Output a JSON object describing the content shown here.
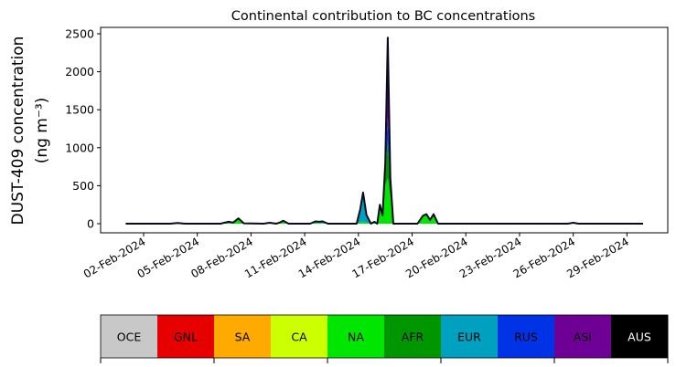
{
  "chart_data": {
    "type": "area",
    "stacked": true,
    "title": "Continental contribution to BC concentrations",
    "ylabel_line1": "DUST-409 concentration",
    "ylabel_line2": "(ng m⁻³)",
    "xlabel": "",
    "x_unit": "day of February 2024",
    "xlim": [
      -0.4,
      31.28
    ],
    "ylim": [
      -120,
      2584
    ],
    "grid": false,
    "yticks": [
      0,
      500,
      1000,
      1500,
      2000,
      2500
    ],
    "ytick_labels": [
      "0",
      "500",
      "1000",
      "1500",
      "2000",
      "2500"
    ],
    "xticks": [
      2,
      5,
      8,
      11,
      14,
      17,
      20,
      23,
      26,
      29
    ],
    "xtick_labels": [
      "02-Feb-2024",
      "05-Feb-2024",
      "08-Feb-2024",
      "11-Feb-2024",
      "14-Feb-2024",
      "17-Feb-2024",
      "20-Feb-2024",
      "23-Feb-2024",
      "26-Feb-2024",
      "29-Feb-2024"
    ],
    "x": [
      1,
      3.5,
      3.9,
      4.3,
      6.3,
      6.75,
      7.0,
      7.3,
      7.6,
      8.7,
      9.05,
      9.4,
      9.6,
      9.8,
      10.1,
      11.3,
      11.6,
      11.8,
      12.0,
      12.3,
      13.9,
      14.1,
      14.26,
      14.45,
      14.7,
      14.9,
      15.05,
      15.2,
      15.35,
      15.5,
      15.64,
      15.78,
      15.95,
      17.3,
      17.6,
      17.8,
      18.0,
      18.2,
      18.45,
      25.7,
      26.0,
      26.3,
      29.9
    ],
    "series": [
      {
        "name": "OCE",
        "color": "#c8c8c8",
        "values": {}
      },
      {
        "name": "GNL",
        "color": "#e60000",
        "values": {}
      },
      {
        "name": "SA",
        "color": "#ffaa00",
        "values": {}
      },
      {
        "name": "CA",
        "color": "#ccff00",
        "values": {}
      },
      {
        "name": "NA",
        "color": "#00e600",
        "values": {
          "3.9": 10,
          "6.75": 25,
          "7.0": 15,
          "7.3": 60,
          "7.6": 5,
          "9.05": 12,
          "9.6": 15,
          "9.8": 25,
          "11.6": 15,
          "11.8": 10,
          "12.0": 10,
          "14.1": 20,
          "14.26": 30,
          "14.45": 15,
          "14.9": 20,
          "15.2": 200,
          "15.35": 100,
          "15.5": 500,
          "15.64": 600,
          "15.78": 350,
          "17.6": 95,
          "17.8": 115,
          "18.0": 50,
          "18.2": 115,
          "26.0": 12
        }
      },
      {
        "name": "AFR",
        "color": "#009600",
        "values": {
          "7.3": 10,
          "15.2": 30,
          "15.35": 10,
          "15.5": 200,
          "15.64": 500,
          "15.78": 150,
          "17.6": 10,
          "17.8": 10,
          "18.2": 10
        }
      },
      {
        "name": "EUR",
        "color": "#00a0c0",
        "values": {
          "9.8": 15,
          "11.6": 15,
          "11.8": 15,
          "12.0": 20,
          "14.1": 170,
          "14.26": 380,
          "14.45": 100,
          "14.9": 5,
          "15.2": 20
        }
      },
      {
        "name": "RUS",
        "color": "#0032e6",
        "values": {
          "15.5": 50,
          "15.64": 300,
          "15.78": 50
        }
      },
      {
        "name": "ASI",
        "color": "#6e0096",
        "values": {
          "15.5": 50,
          "15.64": 1050,
          "15.78": 50
        }
      },
      {
        "name": "AUS",
        "color": "#000000",
        "values": {}
      }
    ],
    "legend": {
      "type": "colorbar",
      "placement": "bottom",
      "labels": [
        "OCE",
        "GNL",
        "SA",
        "CA",
        "NA",
        "AFR",
        "EUR",
        "RUS",
        "ASI",
        "AUS"
      ],
      "colors": [
        "#c8c8c8",
        "#e60000",
        "#ffaa00",
        "#ccff00",
        "#00e600",
        "#009600",
        "#00a0c0",
        "#0032e6",
        "#6e0096",
        "#000000"
      ],
      "text_colors": [
        "#000",
        "#000",
        "#000",
        "#000",
        "#000",
        "#000",
        "#000",
        "#000",
        "#000",
        "#fff"
      ]
    }
  }
}
